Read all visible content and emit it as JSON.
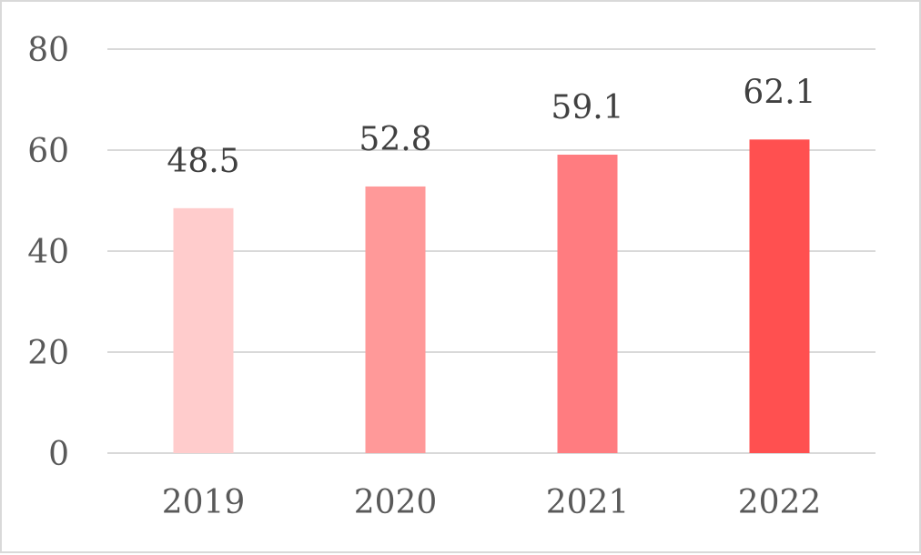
{
  "chart_data": {
    "type": "bar",
    "categories": [
      "2019",
      "2020",
      "2021",
      "2022"
    ],
    "series": [
      {
        "values": [
          48.5,
          52.8,
          59.1,
          62.1
        ],
        "colors": [
          "#ffcccc",
          "#ff9999",
          "#ff7c80",
          "#ff5050"
        ]
      }
    ],
    "data_labels": [
      "48.5",
      "52.8",
      "59.1",
      "62.1"
    ],
    "ylim": [
      0,
      80
    ],
    "yticks": [
      0,
      20,
      40,
      60,
      80
    ],
    "ytick_labels": [
      "0",
      "20",
      "40",
      "60",
      "80"
    ],
    "grid": true,
    "gridline_color": "#d9d9d9",
    "legend": "none",
    "title": "",
    "xlabel": "",
    "ylabel": ""
  }
}
